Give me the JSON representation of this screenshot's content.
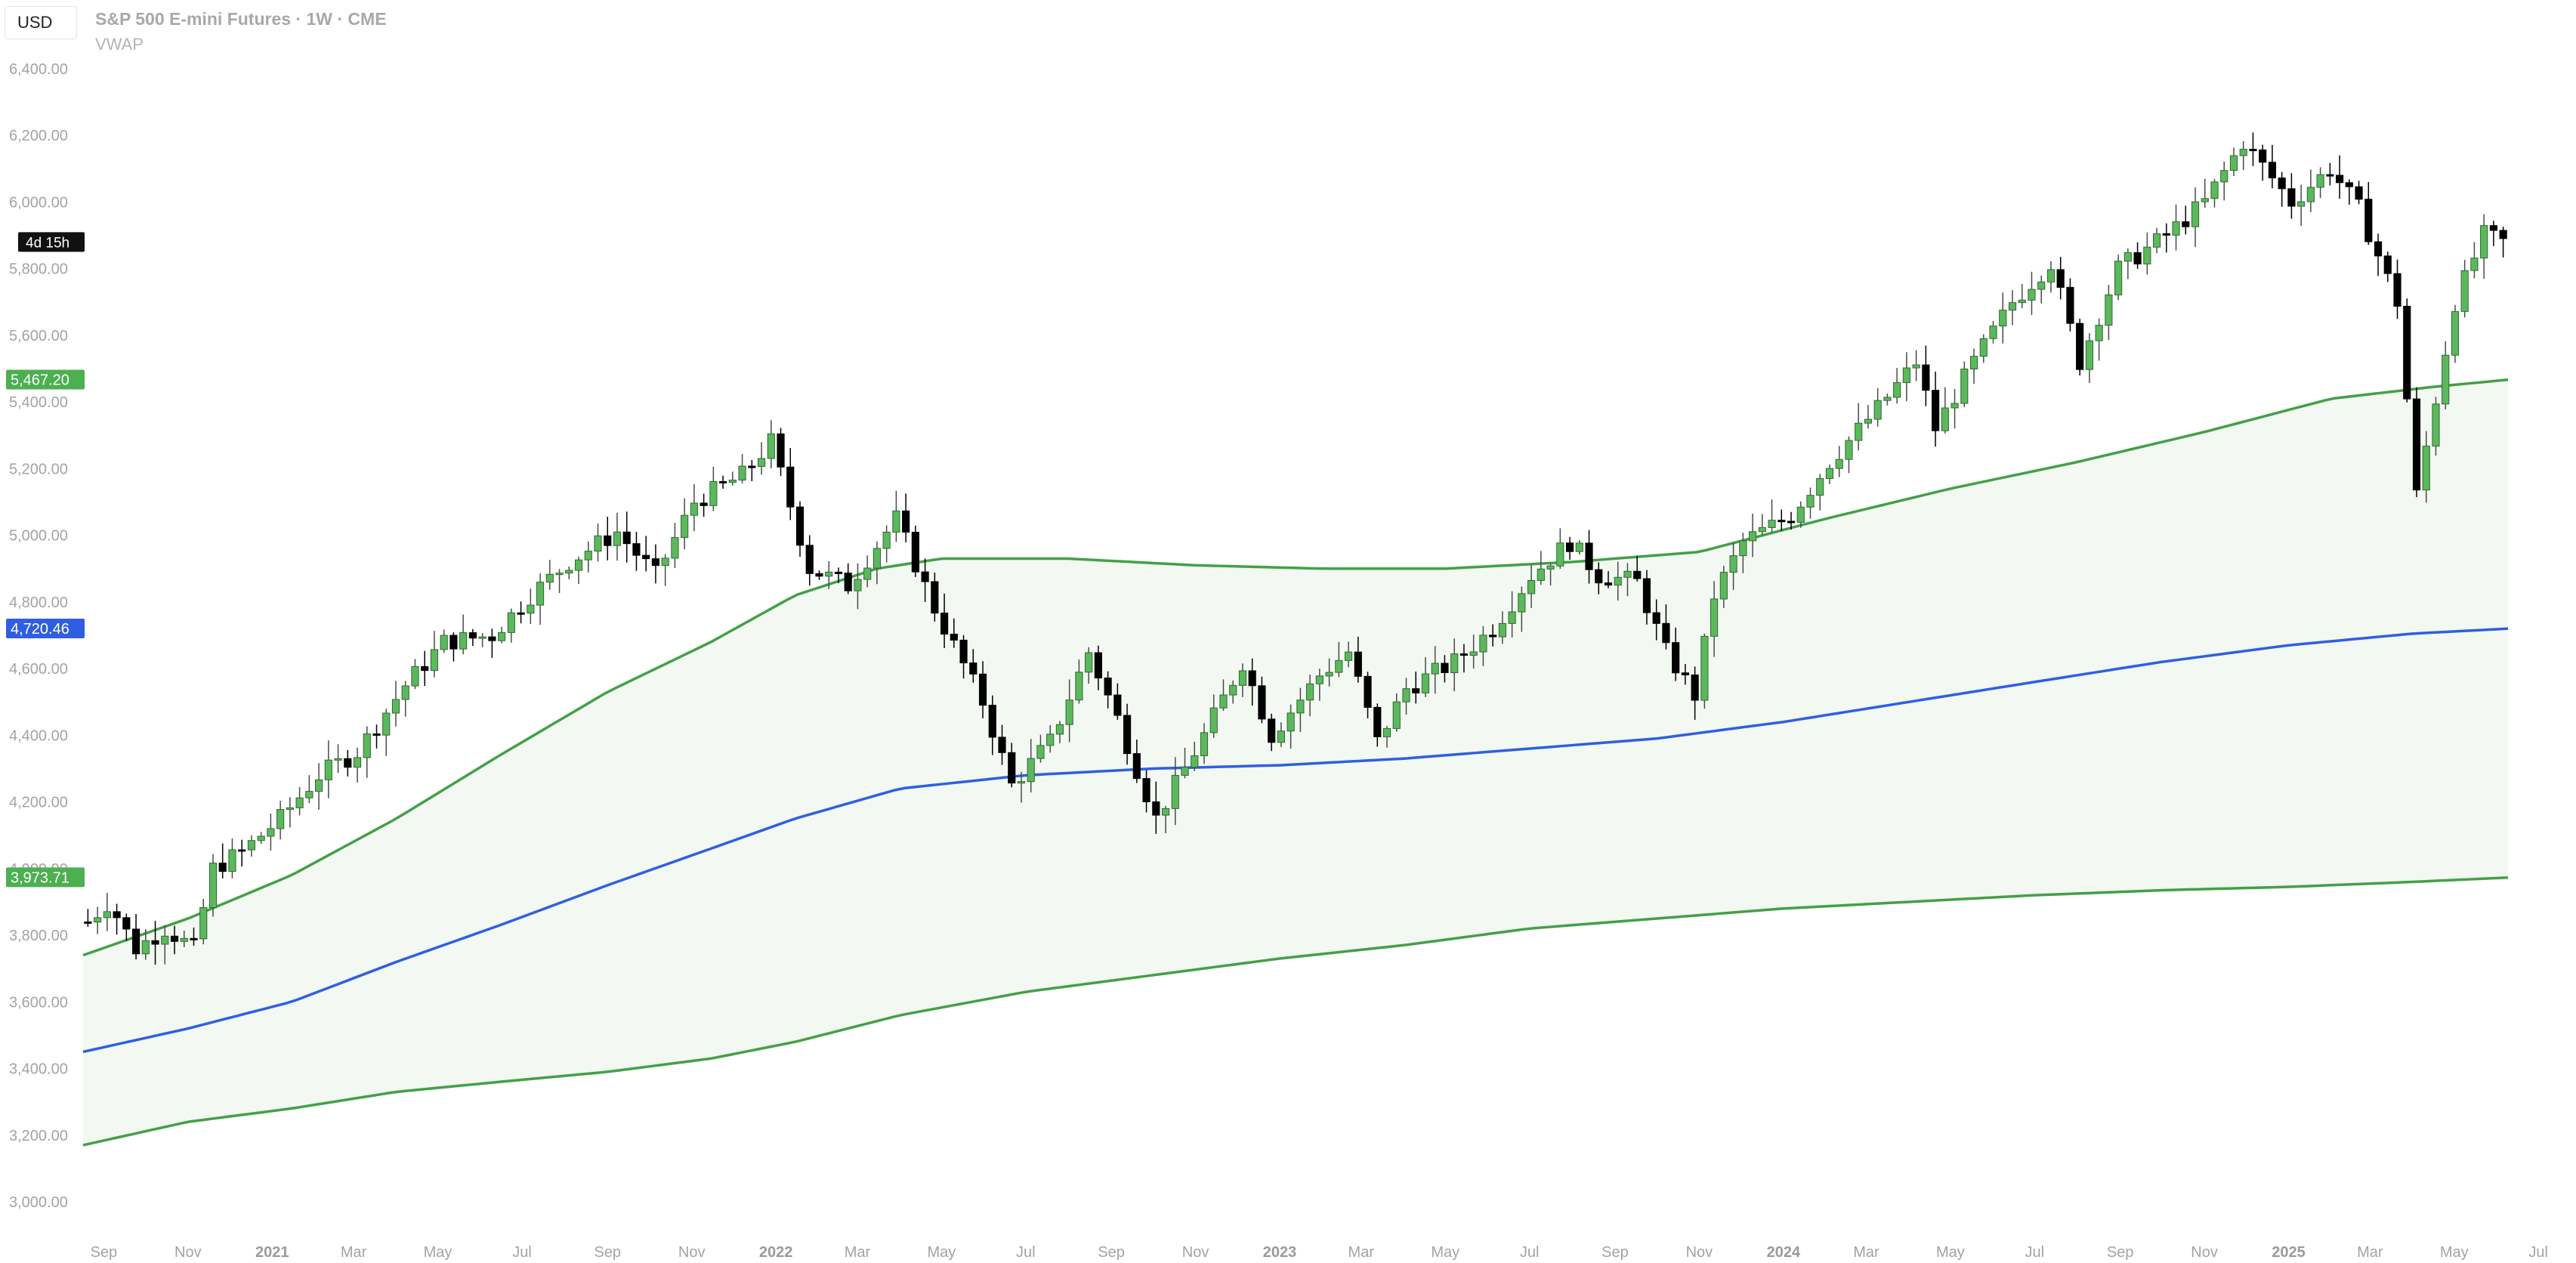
{
  "header": {
    "currency": "USD",
    "title": "S&P 500 E-mini Futures · 1W · CME",
    "indicator": "VWAP"
  },
  "colors": {
    "band": "#43a047",
    "band_fill": "#f3f8f2",
    "vwap": "#2f5fe0",
    "up_candle": "#5cb85c",
    "down_candle": "#000000",
    "label_green": "#4caf50",
    "label_blue": "#2f5fe0",
    "countdown_bg": "#111111"
  },
  "badges": {
    "countdown": "4d 15h",
    "upper_band": "5,467.20",
    "vwap": "4,720.46",
    "lower_band": "3,973.71"
  },
  "chart_data": {
    "type": "candlestick",
    "y_ticks": [
      "6,400.00",
      "6,200.00",
      "6,000.00",
      "5,800.00",
      "5,600.00",
      "5,400.00",
      "5,200.00",
      "5,000.00",
      "4,800.00",
      "4,600.00",
      "4,400.00",
      "4,200.00",
      "4,000.00",
      "3,800.00",
      "3,600.00",
      "3,400.00",
      "3,200.00",
      "3,000.00"
    ],
    "ylim": [
      2900,
      6400
    ],
    "x_ticks": [
      {
        "label": "Sep",
        "bold": false
      },
      {
        "label": "Nov",
        "bold": false
      },
      {
        "label": "2021",
        "bold": true
      },
      {
        "label": "Mar",
        "bold": false
      },
      {
        "label": "May",
        "bold": false
      },
      {
        "label": "Jul",
        "bold": false
      },
      {
        "label": "Sep",
        "bold": false
      },
      {
        "label": "Nov",
        "bold": false
      },
      {
        "label": "2022",
        "bold": true
      },
      {
        "label": "Mar",
        "bold": false
      },
      {
        "label": "May",
        "bold": false
      },
      {
        "label": "Jul",
        "bold": false
      },
      {
        "label": "Sep",
        "bold": false
      },
      {
        "label": "Nov",
        "bold": false
      },
      {
        "label": "2023",
        "bold": true
      },
      {
        "label": "Mar",
        "bold": false
      },
      {
        "label": "May",
        "bold": false
      },
      {
        "label": "Jul",
        "bold": false
      },
      {
        "label": "Sep",
        "bold": false
      },
      {
        "label": "Nov",
        "bold": false
      },
      {
        "label": "2024",
        "bold": true
      },
      {
        "label": "Mar",
        "bold": false
      },
      {
        "label": "May",
        "bold": false
      },
      {
        "label": "Jul",
        "bold": false
      },
      {
        "label": "Sep",
        "bold": false
      },
      {
        "label": "Nov",
        "bold": false
      },
      {
        "label": "2025",
        "bold": true
      },
      {
        "label": "Mar",
        "bold": false
      },
      {
        "label": "May",
        "bold": false
      },
      {
        "label": "Jul",
        "bold": false
      }
    ],
    "close_path": [
      [
        "2020-08-17",
        3840
      ],
      [
        "2020-09-01",
        3900
      ],
      [
        "2020-09-21",
        3760
      ],
      [
        "2020-10-12",
        3820
      ],
      [
        "2020-11-02",
        3760
      ],
      [
        "2020-11-16",
        4000
      ],
      [
        "2020-12-07",
        4050
      ],
      [
        "2021-01-04",
        4150
      ],
      [
        "2021-02-01",
        4280
      ],
      [
        "2021-03-01",
        4350
      ],
      [
        "2021-04-05",
        4550
      ],
      [
        "2021-05-03",
        4680
      ],
      [
        "2021-06-07",
        4700
      ],
      [
        "2021-07-05",
        4820
      ],
      [
        "2021-08-02",
        4920
      ],
      [
        "2021-09-06",
        5010
      ],
      [
        "2021-10-04",
        4880
      ],
      [
        "2021-11-01",
        5100
      ],
      [
        "2021-12-06",
        5180
      ],
      [
        "2021-12-27",
        5280
      ],
      [
        "2022-01-24",
        4900
      ],
      [
        "2022-02-21",
        4850
      ],
      [
        "2022-03-28",
        5050
      ],
      [
        "2022-04-25",
        4780
      ],
      [
        "2022-05-30",
        4500
      ],
      [
        "2022-06-20",
        4250
      ],
      [
        "2022-07-18",
        4380
      ],
      [
        "2022-08-15",
        4650
      ],
      [
        "2022-09-05",
        4450
      ],
      [
        "2022-10-03",
        4150
      ],
      [
        "2022-11-07",
        4400
      ],
      [
        "2022-12-05",
        4620
      ],
      [
        "2022-12-26",
        4400
      ],
      [
        "2023-01-30",
        4580
      ],
      [
        "2023-02-20",
        4650
      ],
      [
        "2023-03-13",
        4380
      ],
      [
        "2023-04-03",
        4540
      ],
      [
        "2023-05-08",
        4620
      ],
      [
        "2023-06-05",
        4720
      ],
      [
        "2023-07-03",
        4880
      ],
      [
        "2023-07-31",
        4980
      ],
      [
        "2023-08-21",
        4880
      ],
      [
        "2023-09-18",
        4860
      ],
      [
        "2023-10-09",
        4650
      ],
      [
        "2023-10-30",
        4520
      ],
      [
        "2023-11-13",
        4820
      ],
      [
        "2023-12-04",
        4980
      ],
      [
        "2024-01-08",
        5060
      ],
      [
        "2024-02-05",
        5220
      ],
      [
        "2024-03-11",
        5380
      ],
      [
        "2024-04-08",
        5520
      ],
      [
        "2024-04-22",
        5320
      ],
      [
        "2024-05-20",
        5520
      ],
      [
        "2024-06-17",
        5700
      ],
      [
        "2024-07-15",
        5820
      ],
      [
        "2024-08-05",
        5520
      ],
      [
        "2024-09-02",
        5800
      ],
      [
        "2024-10-07",
        5900
      ],
      [
        "2024-11-04",
        6000
      ],
      [
        "2024-12-02",
        6180
      ],
      [
        "2025-01-06",
        6000
      ],
      [
        "2025-02-03",
        6100
      ],
      [
        "2025-02-24",
        5980
      ],
      [
        "2025-03-24",
        5700
      ],
      [
        "2025-04-07",
        5120
      ],
      [
        "2025-05-05",
        5700
      ],
      [
        "2025-05-26",
        5900
      ],
      [
        "2025-06-09",
        5880
      ]
    ],
    "upper_band": [
      [
        "2020-08-17",
        3740
      ],
      [
        "2020-11-01",
        3850
      ],
      [
        "2021-01-15",
        3980
      ],
      [
        "2021-04-01",
        4150
      ],
      [
        "2021-06-15",
        4340
      ],
      [
        "2021-09-01",
        4530
      ],
      [
        "2021-11-15",
        4680
      ],
      [
        "2022-01-15",
        4820
      ],
      [
        "2022-03-15",
        4900
      ],
      [
        "2022-05-01",
        4930
      ],
      [
        "2022-08-01",
        4930
      ],
      [
        "2022-11-01",
        4910
      ],
      [
        "2023-02-01",
        4900
      ],
      [
        "2023-05-01",
        4900
      ],
      [
        "2023-08-01",
        4920
      ],
      [
        "2023-11-01",
        4950
      ],
      [
        "2024-02-01",
        5050
      ],
      [
        "2024-05-01",
        5140
      ],
      [
        "2024-08-01",
        5220
      ],
      [
        "2024-11-01",
        5310
      ],
      [
        "2025-02-01",
        5410
      ],
      [
        "2025-04-15",
        5445
      ],
      [
        "2025-06-09",
        5467
      ]
    ],
    "vwap": [
      [
        "2020-08-17",
        3450
      ],
      [
        "2020-11-01",
        3520
      ],
      [
        "2021-01-15",
        3600
      ],
      [
        "2021-04-01",
        3720
      ],
      [
        "2021-06-15",
        3830
      ],
      [
        "2021-09-01",
        3950
      ],
      [
        "2021-11-15",
        4060
      ],
      [
        "2022-01-15",
        4150
      ],
      [
        "2022-04-01",
        4240
      ],
      [
        "2022-07-01",
        4280
      ],
      [
        "2022-10-01",
        4300
      ],
      [
        "2023-01-01",
        4310
      ],
      [
        "2023-04-01",
        4330
      ],
      [
        "2023-07-01",
        4360
      ],
      [
        "2023-10-01",
        4390
      ],
      [
        "2024-01-01",
        4440
      ],
      [
        "2024-04-01",
        4500
      ],
      [
        "2024-07-01",
        4560
      ],
      [
        "2024-10-01",
        4620
      ],
      [
        "2025-01-01",
        4670
      ],
      [
        "2025-04-01",
        4705
      ],
      [
        "2025-06-09",
        4720
      ]
    ],
    "lower_band": [
      [
        "2020-08-17",
        3170
      ],
      [
        "2020-11-01",
        3240
      ],
      [
        "2021-01-15",
        3280
      ],
      [
        "2021-04-01",
        3330
      ],
      [
        "2021-06-15",
        3360
      ],
      [
        "2021-09-01",
        3390
      ],
      [
        "2021-11-15",
        3430
      ],
      [
        "2022-01-15",
        3480
      ],
      [
        "2022-04-01",
        3560
      ],
      [
        "2022-07-01",
        3630
      ],
      [
        "2022-10-01",
        3680
      ],
      [
        "2023-01-01",
        3730
      ],
      [
        "2023-04-01",
        3770
      ],
      [
        "2023-07-01",
        3820
      ],
      [
        "2023-10-01",
        3850
      ],
      [
        "2024-01-01",
        3880
      ],
      [
        "2024-04-01",
        3900
      ],
      [
        "2024-07-01",
        3920
      ],
      [
        "2024-10-01",
        3935
      ],
      [
        "2025-01-01",
        3945
      ],
      [
        "2025-04-01",
        3960
      ],
      [
        "2025-06-09",
        3973
      ]
    ]
  }
}
